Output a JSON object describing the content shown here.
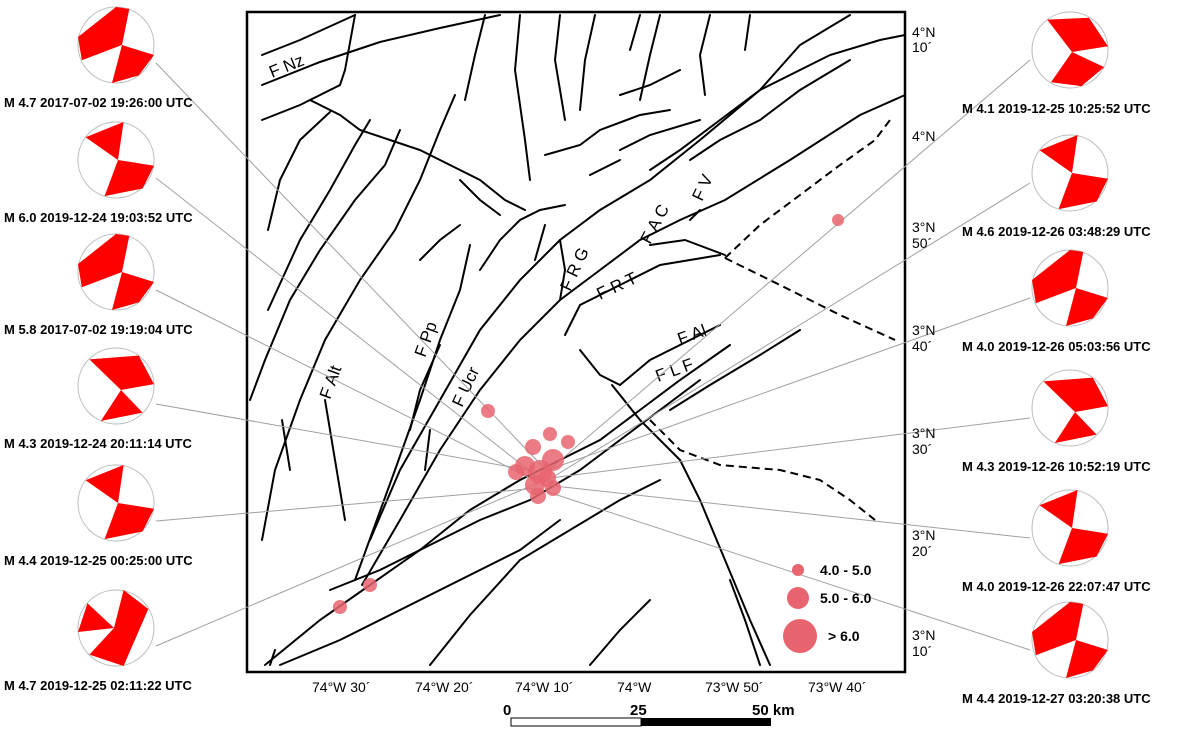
{
  "map": {
    "faults": [
      "F Nz",
      "F Pp",
      "F Alt",
      "F Ucr",
      "F R G",
      "F R T",
      "F A C",
      "F V",
      "F Al",
      "F L F"
    ],
    "longitude_ticks": [
      "74°W 30´",
      "74°W 20´",
      "74°W 10´",
      "74°W",
      "73°W 50´",
      "73°W 40´"
    ],
    "latitude_ticks": [
      {
        "deg": "4°N",
        "min": "10´"
      },
      {
        "deg": "4°N",
        "min": ""
      },
      {
        "deg": "3°N",
        "min": "50´"
      },
      {
        "deg": "3°N",
        "min": "40´"
      },
      {
        "deg": "3°N",
        "min": "30´"
      },
      {
        "deg": "3°N",
        "min": "20´"
      },
      {
        "deg": "3°N",
        "min": "10´"
      }
    ],
    "legend": {
      "items": [
        {
          "label": "4.0 - 5.0"
        },
        {
          "label": "5.0 - 6.0"
        },
        {
          "label": "> 6.0"
        }
      ],
      "epicenter_color": "#e8646e"
    },
    "scale_bar": {
      "labels": [
        "0",
        "25",
        "50 km"
      ]
    }
  },
  "mechanisms": {
    "left": [
      "M 4.7 2017-07-02 19:26:00 UTC",
      "M 6.0 2019-12-24 19:03:52 UTC",
      "M 5.8 2017-07-02 19:19:04 UTC",
      "M 4.3 2019-12-24 20:11:14 UTC",
      "M 4.4 2019-12-25 00:25:00 UTC",
      "M 4.7 2019-12-25 02:11:22 UTC"
    ],
    "right": [
      "M 4.1 2019-12-25 10:25:52 UTC",
      "M 4.6 2019-12-26 03:48:29 UTC",
      "M 4.0 2019-12-26 05:03:56 UTC",
      "M 4.3 2019-12-26 10:52:19 UTC",
      "M 4.0 2019-12-26 22:07:47 UTC",
      "M 4.4 2019-12-27 03:20:38 UTC"
    ],
    "beachball_color": "#ff0000"
  }
}
